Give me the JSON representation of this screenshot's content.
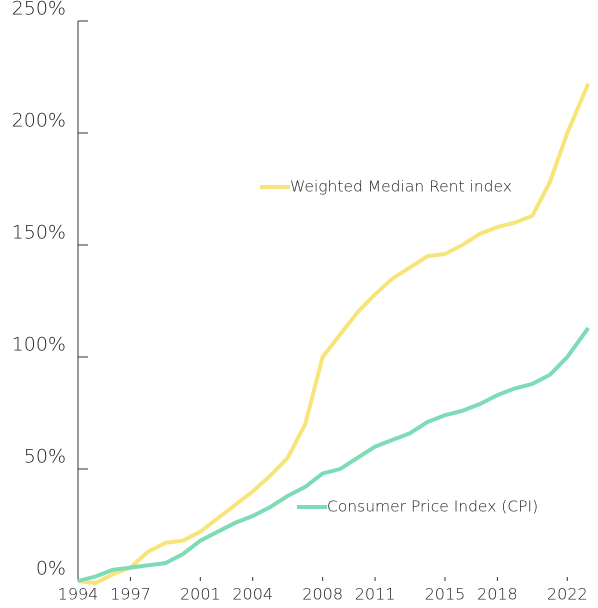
{
  "chart_data": {
    "type": "line",
    "x": [
      1994,
      1995,
      1996,
      1997,
      1998,
      1999,
      2000,
      2001,
      2002,
      2003,
      2004,
      2005,
      2006,
      2007,
      2008,
      2009,
      2010,
      2011,
      2012,
      2013,
      2014,
      2015,
      2016,
      2017,
      2018,
      2019,
      2020,
      2021,
      2022,
      2023.2
    ],
    "series": [
      {
        "name": "Weighted Median Rent index",
        "color": "#f7e57a",
        "values": [
          0,
          -1,
          3,
          6,
          13,
          17,
          18,
          22,
          28,
          34,
          40,
          47,
          55,
          70,
          100,
          110,
          120,
          128,
          135,
          140,
          145,
          146,
          150,
          155,
          158,
          160,
          163,
          178,
          200,
          222
        ]
      },
      {
        "name": "Consumer Price Index (CPI)",
        "color": "#7ddbb5",
        "values": [
          0,
          2,
          5,
          6,
          7,
          8,
          12,
          18,
          22,
          26,
          29,
          33,
          38,
          42,
          48,
          50,
          55,
          60,
          63,
          66,
          71,
          74,
          76,
          79,
          83,
          86,
          88,
          92,
          100,
          113
        ]
      }
    ],
    "xlim": [
      1994,
      2023.3
    ],
    "xticks": [
      1994,
      1997,
      2001,
      2004,
      2008,
      2011,
      2015,
      2018,
      2022
    ],
    "ylim": [
      0,
      250
    ],
    "yticks": [
      {
        "value": 0,
        "label": "0%"
      },
      {
        "value": 50,
        "label": "50%"
      },
      {
        "value": 100,
        "label": "100%"
      },
      {
        "value": 150,
        "label": "150%"
      },
      {
        "value": 200,
        "label": "200%"
      },
      {
        "value": 250,
        "label": "250%"
      }
    ]
  }
}
